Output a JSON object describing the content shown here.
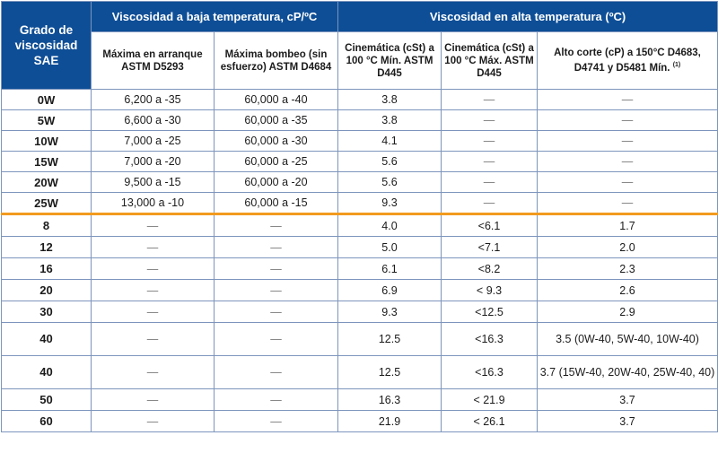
{
  "header": {
    "grade_label": "Grado de viscosidad SAE",
    "low_temp_group": "Viscosidad a baja temperatura, cP/ºC",
    "high_temp_group": "Viscosidad en alta temperatura (ºC)",
    "columns": [
      "Máxima en arranque ASTM D5293",
      "Máxima bombeo (sin esfuerzo) ASTM D4684",
      "Cinemática (cSt) a 100 °C Mín. ASTM D445",
      "Cinemática (cSt) a 100 °C Máx. ASTM D445",
      "Alto corte (cP) a 150°C D4683, D4741 y D5481 Mín."
    ],
    "footnote_mark": "(1)"
  },
  "winter_rows": [
    {
      "grade": "0W",
      "crank": "6,200 a -35",
      "pump": "60,000 a -40",
      "kin_min": "3.8",
      "kin_max": "—",
      "hths": "—"
    },
    {
      "grade": "5W",
      "crank": "6,600 a -30",
      "pump": "60,000 a -35",
      "kin_min": "3.8",
      "kin_max": "—",
      "hths": "—"
    },
    {
      "grade": "10W",
      "crank": "7,000 a -25",
      "pump": "60,000 a -30",
      "kin_min": "4.1",
      "kin_max": "—",
      "hths": "—"
    },
    {
      "grade": "15W",
      "crank": "7,000 a -20",
      "pump": "60,000 a -25",
      "kin_min": "5.6",
      "kin_max": "—",
      "hths": "—"
    },
    {
      "grade": "20W",
      "crank": "9,500 a -15",
      "pump": "60,000 a -20",
      "kin_min": "5.6",
      "kin_max": "—",
      "hths": "—"
    },
    {
      "grade": "25W",
      "crank": "13,000 a -10",
      "pump": "60,000 a -15",
      "kin_min": "9.3",
      "kin_max": "—",
      "hths": "—"
    }
  ],
  "summer_rows": [
    {
      "grade": "8",
      "crank": "—",
      "pump": "—",
      "kin_min": "4.0",
      "kin_max": "<6.1",
      "hths": "1.7"
    },
    {
      "grade": "12",
      "crank": "—",
      "pump": "—",
      "kin_min": "5.0",
      "kin_max": "<7.1",
      "hths": "2.0"
    },
    {
      "grade": "16",
      "crank": "—",
      "pump": "—",
      "kin_min": "6.1",
      "kin_max": "<8.2",
      "hths": "2.3"
    },
    {
      "grade": "20",
      "crank": "—",
      "pump": "—",
      "kin_min": "6.9",
      "kin_max": "< 9.3",
      "hths": "2.6"
    },
    {
      "grade": "30",
      "crank": "—",
      "pump": "—",
      "kin_min": "9.3",
      "kin_max": "<12.5",
      "hths": "2.9"
    },
    {
      "grade": "40",
      "crank": "—",
      "pump": "—",
      "kin_min": "12.5",
      "kin_max": "<16.3",
      "hths": "3.5 (0W-40, 5W-40, 10W-40)"
    },
    {
      "grade": "40",
      "crank": "—",
      "pump": "—",
      "kin_min": "12.5",
      "kin_max": "<16.3",
      "hths": "3.7 (15W-40, 20W-40, 25W-40, 40)"
    },
    {
      "grade": "50",
      "crank": "—",
      "pump": "—",
      "kin_min": "16.3",
      "kin_max": "< 21.9",
      "hths": "3.7"
    },
    {
      "grade": "60",
      "crank": "—",
      "pump": "—",
      "kin_min": "21.9",
      "kin_max": "< 26.1",
      "hths": "3.7"
    }
  ]
}
